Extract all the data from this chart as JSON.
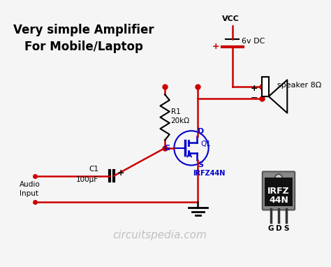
{
  "title_line1": "Very simple Amplifier",
  "title_line2": "For Mobile/Laptop",
  "watermark": "circuitspedia.com",
  "bg_color": "#f5f5f5",
  "wire_color": "#cc0000",
  "mosfet_color": "#0000cc",
  "text_color": "#000000",
  "component_color": "#000000",
  "fig_width": 4.74,
  "fig_height": 3.82,
  "dpi": 100
}
